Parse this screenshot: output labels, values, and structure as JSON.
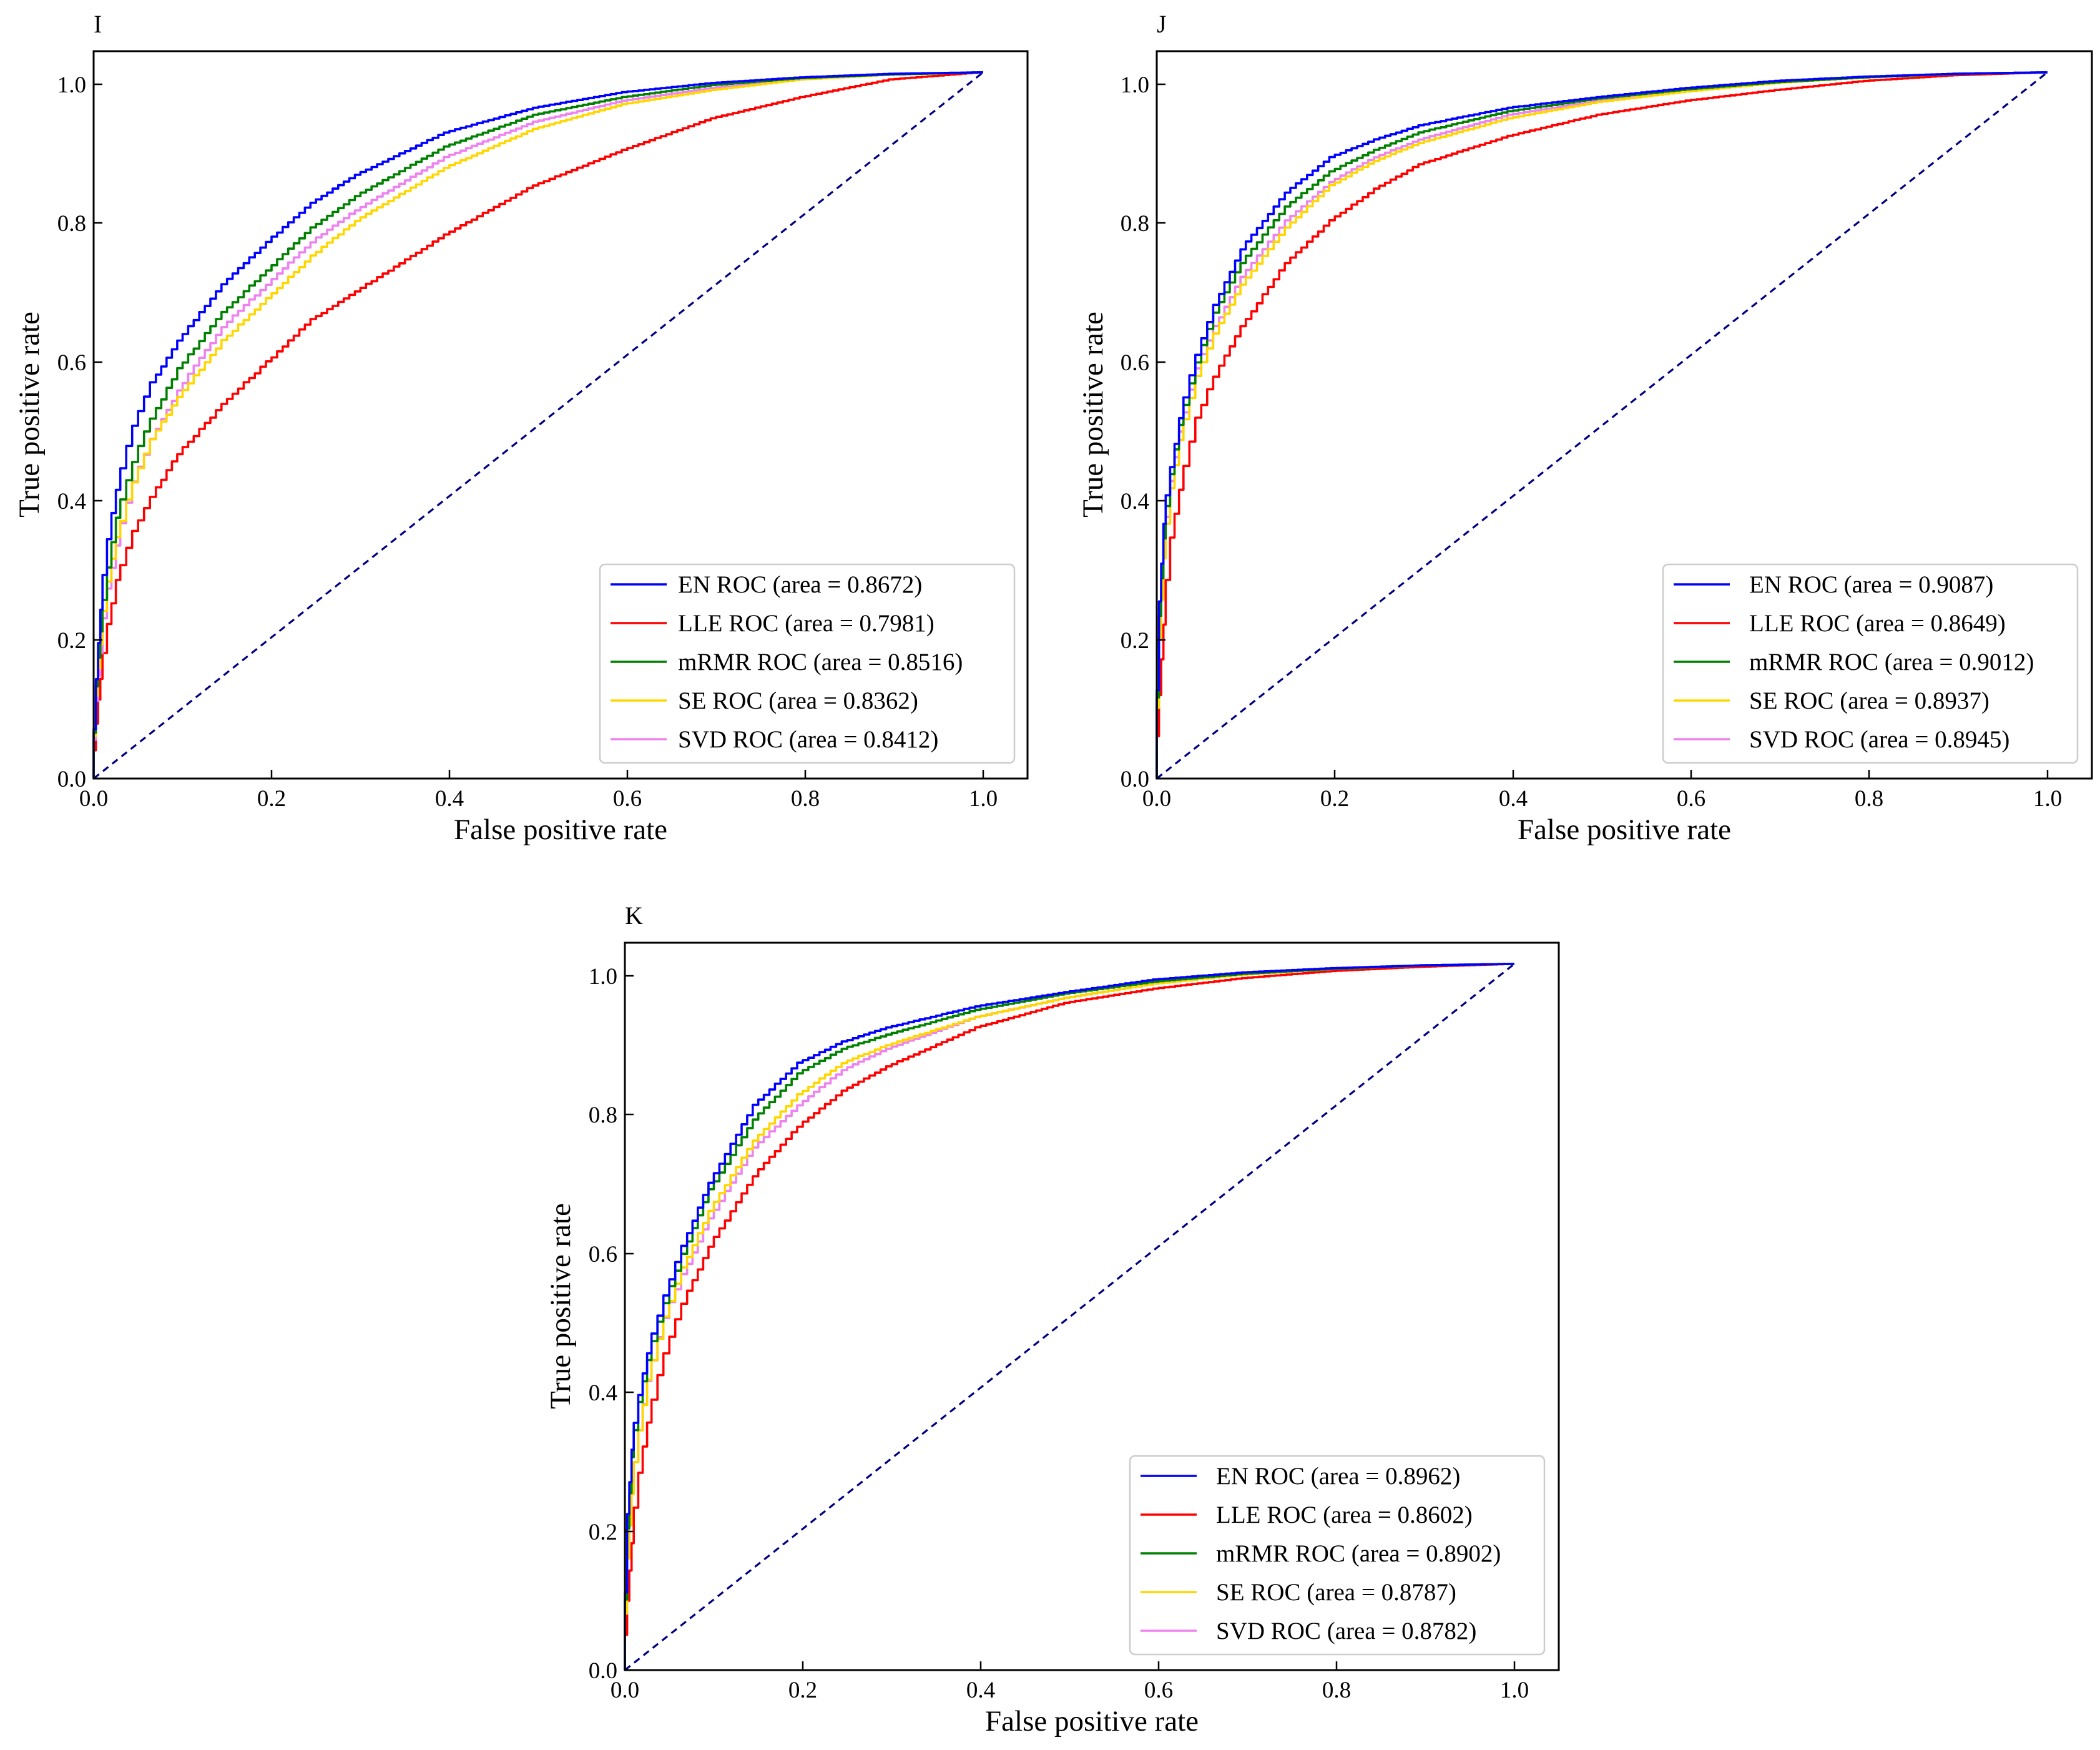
{
  "colors": {
    "EN": "#0000ff",
    "LLE": "#ff0000",
    "mRMR": "#008000",
    "SE": "#ffd700",
    "SVD": "#ee82ee",
    "chance": "#000080"
  },
  "chart_data": [
    {
      "panel": "I",
      "type": "line",
      "xlabel": "False positive rate",
      "ylabel": "True positive rate",
      "xlim": [
        0.0,
        1.05
      ],
      "ylim": [
        0.0,
        1.03
      ],
      "xticks": [
        "0.0",
        "0.2",
        "0.4",
        "0.6",
        "0.8",
        "1.0"
      ],
      "yticks": [
        "0.0",
        "0.2",
        "0.4",
        "0.6",
        "0.8",
        "1.0"
      ],
      "legend_position": "lower-right",
      "series": [
        {
          "name": "EN ROC (area = 0.8672)",
          "key": "EN",
          "x": [
            0,
            0.005,
            0.01,
            0.02,
            0.03,
            0.05,
            0.07,
            0.1,
            0.15,
            0.2,
            0.25,
            0.3,
            0.4,
            0.5,
            0.6,
            0.7,
            0.8,
            0.9,
            1.0
          ],
          "y": [
            0,
            0.14,
            0.24,
            0.34,
            0.41,
            0.5,
            0.56,
            0.62,
            0.7,
            0.76,
            0.815,
            0.855,
            0.915,
            0.95,
            0.972,
            0.985,
            0.993,
            0.998,
            1.0
          ]
        },
        {
          "name": "LLE ROC (area = 0.7981)",
          "key": "LLE",
          "x": [
            0,
            0.005,
            0.01,
            0.02,
            0.03,
            0.05,
            0.07,
            0.1,
            0.15,
            0.2,
            0.25,
            0.3,
            0.4,
            0.5,
            0.6,
            0.7,
            0.8,
            0.9,
            1.0
          ],
          "y": [
            0,
            0.08,
            0.14,
            0.22,
            0.28,
            0.35,
            0.4,
            0.46,
            0.53,
            0.59,
            0.65,
            0.69,
            0.77,
            0.84,
            0.89,
            0.935,
            0.965,
            0.99,
            1.0
          ]
        },
        {
          "name": "mRMR ROC (area = 0.8516)",
          "key": "mRMR",
          "x": [
            0,
            0.005,
            0.01,
            0.02,
            0.03,
            0.05,
            0.07,
            0.1,
            0.15,
            0.2,
            0.25,
            0.3,
            0.4,
            0.5,
            0.6,
            0.7,
            0.8,
            0.9,
            1.0
          ],
          "y": [
            0,
            0.13,
            0.21,
            0.3,
            0.37,
            0.45,
            0.51,
            0.58,
            0.66,
            0.72,
            0.78,
            0.825,
            0.895,
            0.94,
            0.965,
            0.982,
            0.992,
            0.997,
            1.0
          ]
        },
        {
          "name": "SE ROC (area = 0.8362)",
          "key": "SE",
          "x": [
            0,
            0.005,
            0.01,
            0.02,
            0.03,
            0.05,
            0.07,
            0.1,
            0.15,
            0.2,
            0.25,
            0.3,
            0.4,
            0.5,
            0.6,
            0.7,
            0.8,
            0.9,
            1.0
          ],
          "y": [
            0,
            0.12,
            0.19,
            0.28,
            0.34,
            0.42,
            0.48,
            0.54,
            0.62,
            0.68,
            0.74,
            0.79,
            0.865,
            0.92,
            0.955,
            0.975,
            0.99,
            0.997,
            1.0
          ]
        },
        {
          "name": "SVD ROC (area = 0.8412)",
          "key": "SVD",
          "x": [
            0,
            0.005,
            0.01,
            0.02,
            0.03,
            0.05,
            0.07,
            0.1,
            0.15,
            0.2,
            0.25,
            0.3,
            0.4,
            0.5,
            0.6,
            0.7,
            0.8,
            0.9,
            1.0
          ],
          "y": [
            0,
            0.11,
            0.18,
            0.27,
            0.33,
            0.42,
            0.48,
            0.55,
            0.64,
            0.7,
            0.76,
            0.805,
            0.88,
            0.93,
            0.96,
            0.978,
            0.99,
            0.997,
            1.0
          ]
        },
        {
          "name": "",
          "key": "chance",
          "dashed": true,
          "x": [
            0,
            1.0
          ],
          "y": [
            0,
            1.0
          ]
        }
      ]
    },
    {
      "panel": "J",
      "type": "line",
      "xlabel": "False positive rate",
      "ylabel": "True positive rate",
      "xlim": [
        0.0,
        1.05
      ],
      "ylim": [
        0.0,
        1.03
      ],
      "xticks": [
        "0.0",
        "0.2",
        "0.4",
        "0.6",
        "0.8",
        "1.0"
      ],
      "yticks": [
        "0.0",
        "0.2",
        "0.4",
        "0.6",
        "0.8",
        "1.0"
      ],
      "legend_position": "lower-right",
      "series": [
        {
          "name": "EN ROC (area = 0.9087)",
          "key": "EN",
          "x": [
            0,
            0.005,
            0.01,
            0.02,
            0.03,
            0.05,
            0.07,
            0.1,
            0.15,
            0.2,
            0.25,
            0.3,
            0.4,
            0.5,
            0.6,
            0.7,
            0.8,
            0.9,
            1.0
          ],
          "y": [
            0,
            0.25,
            0.36,
            0.44,
            0.51,
            0.6,
            0.67,
            0.75,
            0.83,
            0.88,
            0.905,
            0.925,
            0.95,
            0.965,
            0.978,
            0.988,
            0.994,
            0.998,
            1.0
          ]
        },
        {
          "name": "LLE ROC (area = 0.8649)",
          "key": "LLE",
          "x": [
            0,
            0.005,
            0.01,
            0.02,
            0.03,
            0.05,
            0.07,
            0.1,
            0.15,
            0.2,
            0.25,
            0.3,
            0.4,
            0.5,
            0.6,
            0.7,
            0.8,
            0.9,
            1.0
          ],
          "y": [
            0,
            0.12,
            0.22,
            0.34,
            0.41,
            0.51,
            0.57,
            0.64,
            0.73,
            0.79,
            0.835,
            0.87,
            0.91,
            0.94,
            0.96,
            0.975,
            0.988,
            0.996,
            1.0
          ]
        },
        {
          "name": "mRMR ROC (area = 0.9012)",
          "key": "mRMR",
          "x": [
            0,
            0.005,
            0.01,
            0.02,
            0.03,
            0.05,
            0.07,
            0.1,
            0.15,
            0.2,
            0.25,
            0.3,
            0.4,
            0.5,
            0.6,
            0.7,
            0.8,
            0.9,
            1.0
          ],
          "y": [
            0,
            0.23,
            0.34,
            0.43,
            0.5,
            0.59,
            0.66,
            0.73,
            0.81,
            0.86,
            0.89,
            0.915,
            0.945,
            0.963,
            0.976,
            0.986,
            0.993,
            0.998,
            1.0
          ]
        },
        {
          "name": "SE ROC (area = 0.8937)",
          "key": "SE",
          "x": [
            0,
            0.005,
            0.01,
            0.02,
            0.03,
            0.05,
            0.07,
            0.1,
            0.15,
            0.2,
            0.25,
            0.3,
            0.4,
            0.5,
            0.6,
            0.7,
            0.8,
            0.9,
            1.0
          ],
          "y": [
            0,
            0.2,
            0.31,
            0.41,
            0.48,
            0.57,
            0.63,
            0.7,
            0.78,
            0.84,
            0.875,
            0.9,
            0.935,
            0.958,
            0.973,
            0.985,
            0.993,
            0.998,
            1.0
          ]
        },
        {
          "name": "SVD ROC (area = 0.8945)",
          "key": "SVD",
          "x": [
            0,
            0.005,
            0.01,
            0.02,
            0.03,
            0.05,
            0.07,
            0.1,
            0.15,
            0.2,
            0.25,
            0.3,
            0.4,
            0.5,
            0.6,
            0.7,
            0.8,
            0.9,
            1.0
          ],
          "y": [
            0,
            0.21,
            0.32,
            0.42,
            0.49,
            0.58,
            0.64,
            0.71,
            0.79,
            0.845,
            0.88,
            0.905,
            0.94,
            0.96,
            0.974,
            0.986,
            0.993,
            0.998,
            1.0
          ]
        },
        {
          "name": "",
          "key": "chance",
          "dashed": true,
          "x": [
            0,
            1.0
          ],
          "y": [
            0,
            1.0
          ]
        }
      ]
    },
    {
      "panel": "K",
      "type": "line",
      "xlabel": "False positive rate",
      "ylabel": "True positive rate",
      "xlim": [
        0.0,
        1.05
      ],
      "ylim": [
        0.0,
        1.03
      ],
      "xticks": [
        "0.0",
        "0.2",
        "0.4",
        "0.6",
        "0.8",
        "1.0"
      ],
      "yticks": [
        "0.0",
        "0.2",
        "0.4",
        "0.6",
        "0.8",
        "1.0"
      ],
      "legend_position": "lower-right",
      "series": [
        {
          "name": "EN ROC (area = 0.8962)",
          "key": "EN",
          "x": [
            0,
            0.005,
            0.01,
            0.02,
            0.03,
            0.05,
            0.07,
            0.1,
            0.15,
            0.2,
            0.25,
            0.3,
            0.4,
            0.5,
            0.6,
            0.7,
            0.8,
            0.9,
            1.0
          ],
          "y": [
            0,
            0.22,
            0.31,
            0.39,
            0.45,
            0.53,
            0.6,
            0.69,
            0.8,
            0.86,
            0.89,
            0.91,
            0.94,
            0.96,
            0.978,
            0.988,
            0.994,
            0.998,
            1.0
          ]
        },
        {
          "name": "LLE ROC (area = 0.8602)",
          "key": "LLE",
          "x": [
            0,
            0.005,
            0.01,
            0.02,
            0.03,
            0.05,
            0.07,
            0.1,
            0.15,
            0.2,
            0.25,
            0.3,
            0.4,
            0.5,
            0.6,
            0.7,
            0.8,
            0.9,
            1.0
          ],
          "y": [
            0,
            0.1,
            0.18,
            0.28,
            0.35,
            0.45,
            0.52,
            0.6,
            0.7,
            0.77,
            0.82,
            0.855,
            0.91,
            0.945,
            0.965,
            0.98,
            0.99,
            0.996,
            1.0
          ]
        },
        {
          "name": "mRMR ROC (area = 0.8902)",
          "key": "mRMR",
          "x": [
            0,
            0.005,
            0.01,
            0.02,
            0.03,
            0.05,
            0.07,
            0.1,
            0.15,
            0.2,
            0.25,
            0.3,
            0.4,
            0.5,
            0.6,
            0.7,
            0.8,
            0.9,
            1.0
          ],
          "y": [
            0,
            0.2,
            0.3,
            0.38,
            0.44,
            0.52,
            0.59,
            0.68,
            0.78,
            0.845,
            0.88,
            0.9,
            0.935,
            0.958,
            0.975,
            0.986,
            0.993,
            0.998,
            1.0
          ]
        },
        {
          "name": "SE ROC (area = 0.8787)",
          "key": "SE",
          "x": [
            0,
            0.005,
            0.01,
            0.02,
            0.03,
            0.05,
            0.07,
            0.1,
            0.15,
            0.2,
            0.25,
            0.3,
            0.4,
            0.5,
            0.6,
            0.7,
            0.8,
            0.9,
            1.0
          ],
          "y": [
            0,
            0.16,
            0.25,
            0.34,
            0.41,
            0.5,
            0.57,
            0.65,
            0.75,
            0.815,
            0.86,
            0.885,
            0.925,
            0.952,
            0.972,
            0.985,
            0.993,
            0.998,
            1.0
          ]
        },
        {
          "name": "SVD ROC (area = 0.8782)",
          "key": "SVD",
          "x": [
            0,
            0.005,
            0.01,
            0.02,
            0.03,
            0.05,
            0.07,
            0.1,
            0.15,
            0.2,
            0.25,
            0.3,
            0.4,
            0.5,
            0.6,
            0.7,
            0.8,
            0.9,
            1.0
          ],
          "y": [
            0,
            0.16,
            0.25,
            0.34,
            0.41,
            0.5,
            0.56,
            0.64,
            0.74,
            0.8,
            0.85,
            0.88,
            0.925,
            0.952,
            0.972,
            0.985,
            0.993,
            0.998,
            1.0
          ]
        },
        {
          "name": "",
          "key": "chance",
          "dashed": true,
          "x": [
            0,
            1.0
          ],
          "y": [
            0,
            1.0
          ]
        }
      ]
    }
  ]
}
